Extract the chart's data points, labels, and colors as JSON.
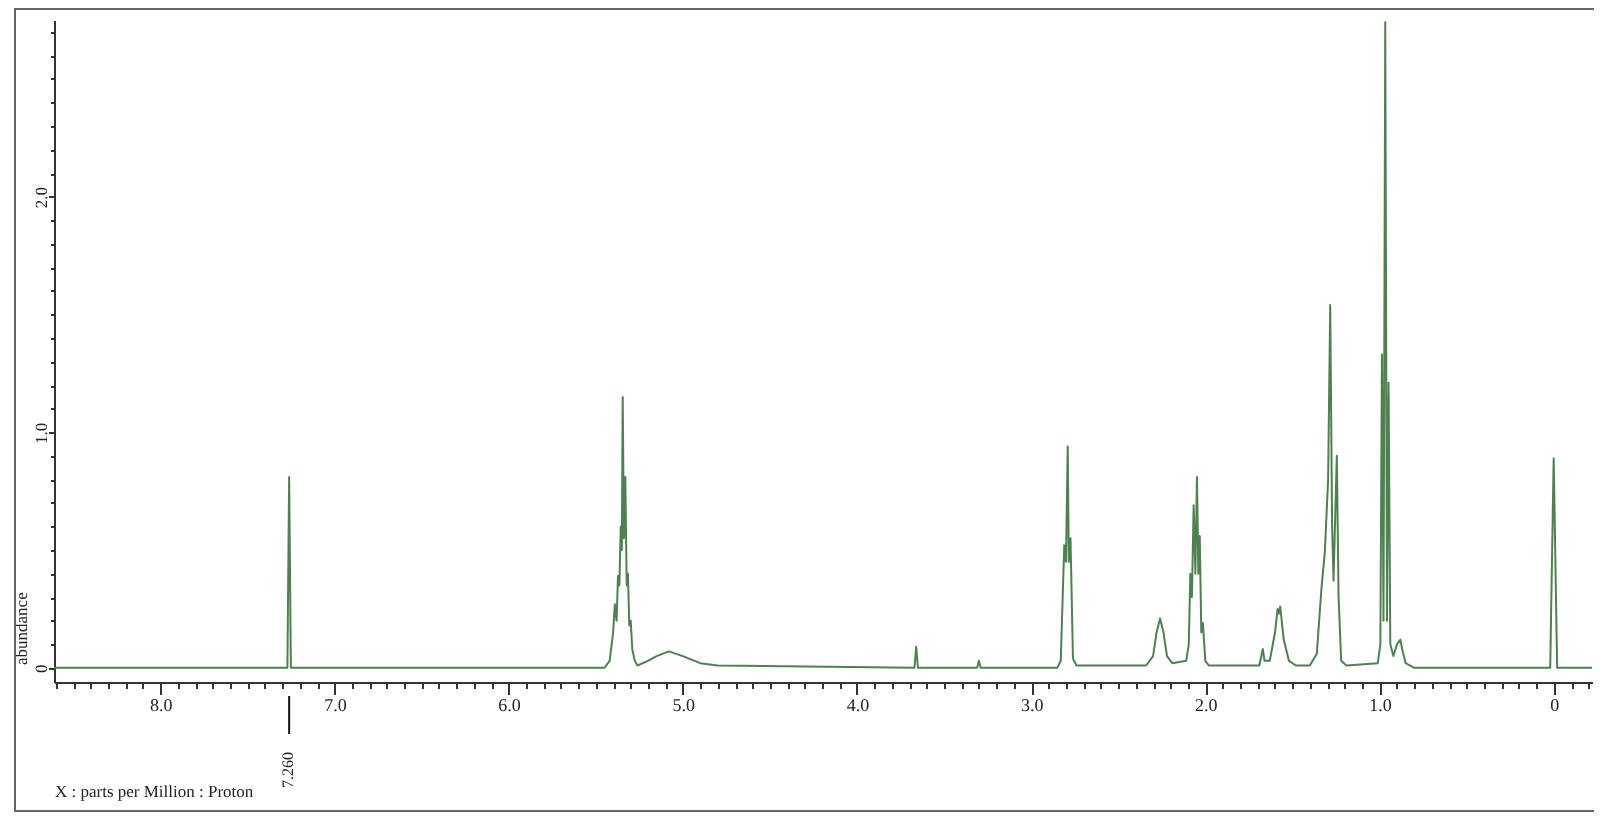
{
  "chart_data": {
    "type": "line",
    "xlabel": "X : parts per Million : Proton",
    "ylabel": "abundance",
    "color": "#4f8050",
    "xlim": [
      8.61,
      -0.22
    ],
    "ylim": [
      -0.06,
      2.75
    ],
    "xticks": [
      {
        "value": 8.6,
        "label": null
      },
      {
        "value": 8.5,
        "label": null
      },
      {
        "value": 8.4,
        "label": null
      },
      {
        "value": 8.3,
        "label": null
      },
      {
        "value": 8.2,
        "label": null
      },
      {
        "value": 8.1,
        "label": null
      },
      {
        "value": 8,
        "label": "8.0"
      },
      {
        "value": 7.9,
        "label": null
      },
      {
        "value": 7.8,
        "label": null
      },
      {
        "value": 7.7,
        "label": null
      },
      {
        "value": 7.6,
        "label": null
      },
      {
        "value": 7.5,
        "label": null
      },
      {
        "value": 7.4,
        "label": null
      },
      {
        "value": 7.3,
        "label": null
      },
      {
        "value": 7.2,
        "label": null
      },
      {
        "value": 7.1,
        "label": null
      },
      {
        "value": 7,
        "label": "7.0"
      },
      {
        "value": 6.9,
        "label": null
      },
      {
        "value": 6.8,
        "label": null
      },
      {
        "value": 6.7,
        "label": null
      },
      {
        "value": 6.6,
        "label": null
      },
      {
        "value": 6.5,
        "label": null
      },
      {
        "value": 6.4,
        "label": null
      },
      {
        "value": 6.3,
        "label": null
      },
      {
        "value": 6.2,
        "label": null
      },
      {
        "value": 6.1,
        "label": null
      },
      {
        "value": 6,
        "label": "6.0"
      },
      {
        "value": 5.9,
        "label": null
      },
      {
        "value": 5.8,
        "label": null
      },
      {
        "value": 5.7,
        "label": null
      },
      {
        "value": 5.6,
        "label": null
      },
      {
        "value": 5.5,
        "label": null
      },
      {
        "value": 5.4,
        "label": null
      },
      {
        "value": 5.3,
        "label": null
      },
      {
        "value": 5.2,
        "label": null
      },
      {
        "value": 5.1,
        "label": null
      },
      {
        "value": 5,
        "label": "5.0"
      },
      {
        "value": 4.9,
        "label": null
      },
      {
        "value": 4.8,
        "label": null
      },
      {
        "value": 4.7,
        "label": null
      },
      {
        "value": 4.6,
        "label": null
      },
      {
        "value": 4.5,
        "label": null
      },
      {
        "value": 4.4,
        "label": null
      },
      {
        "value": 4.3,
        "label": null
      },
      {
        "value": 4.2,
        "label": null
      },
      {
        "value": 4.1,
        "label": null
      },
      {
        "value": 4,
        "label": "4.0"
      },
      {
        "value": 3.9,
        "label": null
      },
      {
        "value": 3.8,
        "label": null
      },
      {
        "value": 3.7,
        "label": null
      },
      {
        "value": 3.6,
        "label": null
      },
      {
        "value": 3.5,
        "label": null
      },
      {
        "value": 3.4,
        "label": null
      },
      {
        "value": 3.3,
        "label": null
      },
      {
        "value": 3.2,
        "label": null
      },
      {
        "value": 3.1,
        "label": null
      },
      {
        "value": 3,
        "label": "3.0"
      },
      {
        "value": 2.9,
        "label": null
      },
      {
        "value": 2.8,
        "label": null
      },
      {
        "value": 2.7,
        "label": null
      },
      {
        "value": 2.6,
        "label": null
      },
      {
        "value": 2.5,
        "label": null
      },
      {
        "value": 2.4,
        "label": null
      },
      {
        "value": 2.3,
        "label": null
      },
      {
        "value": 2.2,
        "label": null
      },
      {
        "value": 2.1,
        "label": null
      },
      {
        "value": 2,
        "label": "2.0"
      },
      {
        "value": 1.9,
        "label": null
      },
      {
        "value": 1.8,
        "label": null
      },
      {
        "value": 1.7,
        "label": null
      },
      {
        "value": 1.6,
        "label": null
      },
      {
        "value": 1.5,
        "label": null
      },
      {
        "value": 1.4,
        "label": null
      },
      {
        "value": 1.3,
        "label": null
      },
      {
        "value": 1.2,
        "label": null
      },
      {
        "value": 1.1,
        "label": null
      },
      {
        "value": 1,
        "label": "1.0"
      },
      {
        "value": 0.9,
        "label": null
      },
      {
        "value": 0.8,
        "label": null
      },
      {
        "value": 0.7,
        "label": null
      },
      {
        "value": 0.6,
        "label": null
      },
      {
        "value": 0.5,
        "label": null
      },
      {
        "value": 0.4,
        "label": null
      },
      {
        "value": 0.3,
        "label": null
      },
      {
        "value": 0.2,
        "label": null
      },
      {
        "value": 0.1,
        "label": null
      },
      0,
      {
        "value": -0.1,
        "label": null
      },
      {
        "value": -0.2,
        "label": null
      }
    ],
    "yticks": [
      0,
      {
        "value": 0.1,
        "label": null
      },
      {
        "value": 0.2,
        "label": null
      },
      {
        "value": 0.3,
        "label": null
      },
      {
        "value": 0.4,
        "label": null
      },
      {
        "value": 0.5,
        "label": null
      },
      {
        "value": 0.6,
        "label": null
      },
      {
        "value": 0.7,
        "label": null
      },
      {
        "value": 0.8,
        "label": null
      },
      {
        "value": 0.9,
        "label": null
      },
      {
        "value": 1,
        "label": "1.0"
      },
      {
        "value": 1.1,
        "label": null
      },
      {
        "value": 1.2,
        "label": null
      },
      {
        "value": 1.3,
        "label": null
      },
      {
        "value": 1.4,
        "label": null
      },
      {
        "value": 1.5,
        "label": null
      },
      {
        "value": 1.6,
        "label": null
      },
      {
        "value": 1.7,
        "label": null
      },
      {
        "value": 1.8,
        "label": null
      },
      {
        "value": 1.9,
        "label": null
      },
      {
        "value": 2,
        "label": "2.0"
      },
      {
        "value": 2.1,
        "label": null
      },
      {
        "value": 2.2,
        "label": null
      },
      {
        "value": 2.3,
        "label": null
      },
      {
        "value": 2.4,
        "label": null
      },
      {
        "value": 2.5,
        "label": null
      },
      {
        "value": 2.6,
        "label": null
      },
      {
        "value": 2.7,
        "label": null
      }
    ],
    "x": [
      8.61,
      7.27,
      7.26,
      7.25,
      5.45,
      5.42,
      5.4,
      5.39,
      5.38,
      5.372,
      5.364,
      5.356,
      5.35,
      5.345,
      5.338,
      5.33,
      5.322,
      5.315,
      5.307,
      5.299,
      5.29,
      5.276,
      5.26,
      5.2,
      5.15,
      5.08,
      5.0,
      4.9,
      4.8,
      3.67,
      3.66,
      3.65,
      3.31,
      3.3,
      3.29,
      2.85,
      2.83,
      2.81,
      2.8,
      2.79,
      2.784,
      2.774,
      2.76,
      2.74,
      2.34,
      2.3,
      2.28,
      2.26,
      2.24,
      2.22,
      2.19,
      2.11,
      2.095,
      2.086,
      2.077,
      2.067,
      2.057,
      2.048,
      2.04,
      2.032,
      2.023,
      2.014,
      2.0,
      1.98,
      1.69,
      1.67,
      1.66,
      1.63,
      1.6,
      1.585,
      1.578,
      1.57,
      1.55,
      1.52,
      1.48,
      1.4,
      1.36,
      1.333,
      1.314,
      1.295,
      1.283,
      1.272,
      1.264,
      1.245,
      1.235,
      1.22,
      1.19,
      1.01,
      0.995,
      0.986,
      0.977,
      0.967,
      0.957,
      0.948,
      0.938,
      0.92,
      0.9,
      0.88,
      0.87,
      0.85,
      0.8,
      0.02,
      0.0,
      -0.02,
      -0.22
    ],
    "values": [
      0,
      0,
      0.81,
      0,
      0,
      0.03,
      0.15,
      0.27,
      0.2,
      0.39,
      0.35,
      0.6,
      0.5,
      1.15,
      0.55,
      0.81,
      0.35,
      0.4,
      0.18,
      0.2,
      0.08,
      0.03,
      0.01,
      0.03,
      0.05,
      0.07,
      0.05,
      0.02,
      0.01,
      0,
      0.09,
      0,
      0,
      0.03,
      0,
      0,
      0.03,
      0.52,
      0.45,
      0.94,
      0.45,
      0.55,
      0.04,
      0.01,
      0.01,
      0.05,
      0.15,
      0.21,
      0.15,
      0.05,
      0.02,
      0.03,
      0.1,
      0.4,
      0.3,
      0.69,
      0.4,
      0.81,
      0.4,
      0.56,
      0.15,
      0.19,
      0.03,
      0.01,
      0.01,
      0.08,
      0.03,
      0.03,
      0.15,
      0.25,
      0.23,
      0.26,
      0.12,
      0.03,
      0.01,
      0.01,
      0.06,
      0.34,
      0.49,
      0.8,
      1.54,
      0.6,
      0.37,
      0.9,
      0.3,
      0.03,
      0.01,
      0.02,
      0.1,
      1.33,
      0.2,
      2.74,
      0.2,
      1.21,
      0.1,
      0.05,
      0.1,
      0.12,
      0.08,
      0.02,
      0,
      0,
      0.89,
      0,
      0
    ],
    "annotations": [
      {
        "text": "7.260",
        "x": 7.26
      }
    ]
  }
}
